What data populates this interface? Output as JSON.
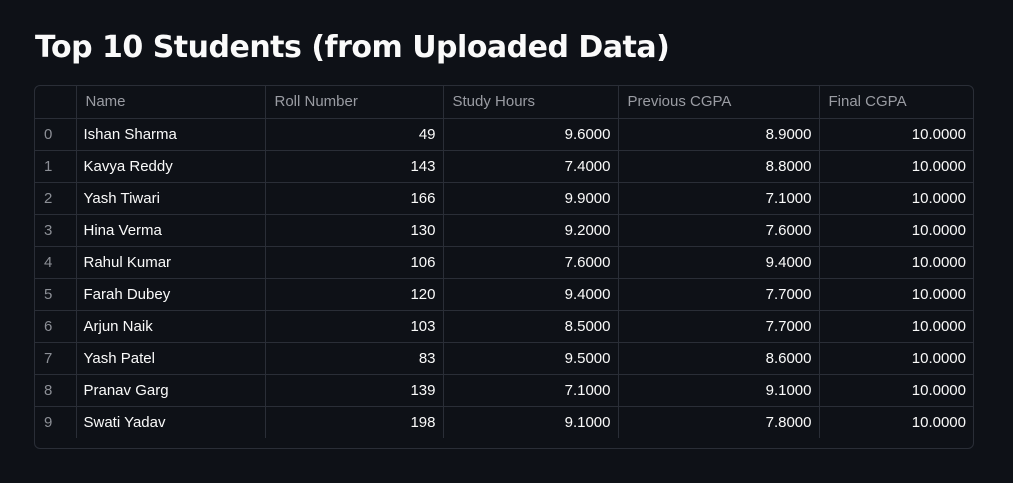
{
  "title": "Top 10 Students (from Uploaded Data)",
  "table": {
    "columns": [
      "",
      "Name",
      "Roll Number",
      "Study Hours",
      "Previous CGPA",
      "Final CGPA"
    ],
    "rows": [
      {
        "index": "0",
        "name": "Ishan Sharma",
        "roll": "49",
        "study_hours": "9.6000",
        "prev_cgpa": "8.9000",
        "final_cgpa": "10.0000"
      },
      {
        "index": "1",
        "name": "Kavya Reddy",
        "roll": "143",
        "study_hours": "7.4000",
        "prev_cgpa": "8.8000",
        "final_cgpa": "10.0000"
      },
      {
        "index": "2",
        "name": "Yash Tiwari",
        "roll": "166",
        "study_hours": "9.9000",
        "prev_cgpa": "7.1000",
        "final_cgpa": "10.0000"
      },
      {
        "index": "3",
        "name": "Hina Verma",
        "roll": "130",
        "study_hours": "9.2000",
        "prev_cgpa": "7.6000",
        "final_cgpa": "10.0000"
      },
      {
        "index": "4",
        "name": "Rahul Kumar",
        "roll": "106",
        "study_hours": "7.6000",
        "prev_cgpa": "9.4000",
        "final_cgpa": "10.0000"
      },
      {
        "index": "5",
        "name": "Farah Dubey",
        "roll": "120",
        "study_hours": "9.4000",
        "prev_cgpa": "7.7000",
        "final_cgpa": "10.0000"
      },
      {
        "index": "6",
        "name": "Arjun Naik",
        "roll": "103",
        "study_hours": "8.5000",
        "prev_cgpa": "7.7000",
        "final_cgpa": "10.0000"
      },
      {
        "index": "7",
        "name": "Yash Patel",
        "roll": "83",
        "study_hours": "9.5000",
        "prev_cgpa": "8.6000",
        "final_cgpa": "10.0000"
      },
      {
        "index": "8",
        "name": "Pranav Garg",
        "roll": "139",
        "study_hours": "7.1000",
        "prev_cgpa": "9.1000",
        "final_cgpa": "10.0000"
      },
      {
        "index": "9",
        "name": "Swati Yadav",
        "roll": "198",
        "study_hours": "9.1000",
        "prev_cgpa": "7.8000",
        "final_cgpa": "10.0000"
      }
    ]
  },
  "colors": {
    "background": "#0e1117",
    "text": "#fafafa",
    "header_text": "#9a9ca3",
    "border": "#2a2e37"
  }
}
